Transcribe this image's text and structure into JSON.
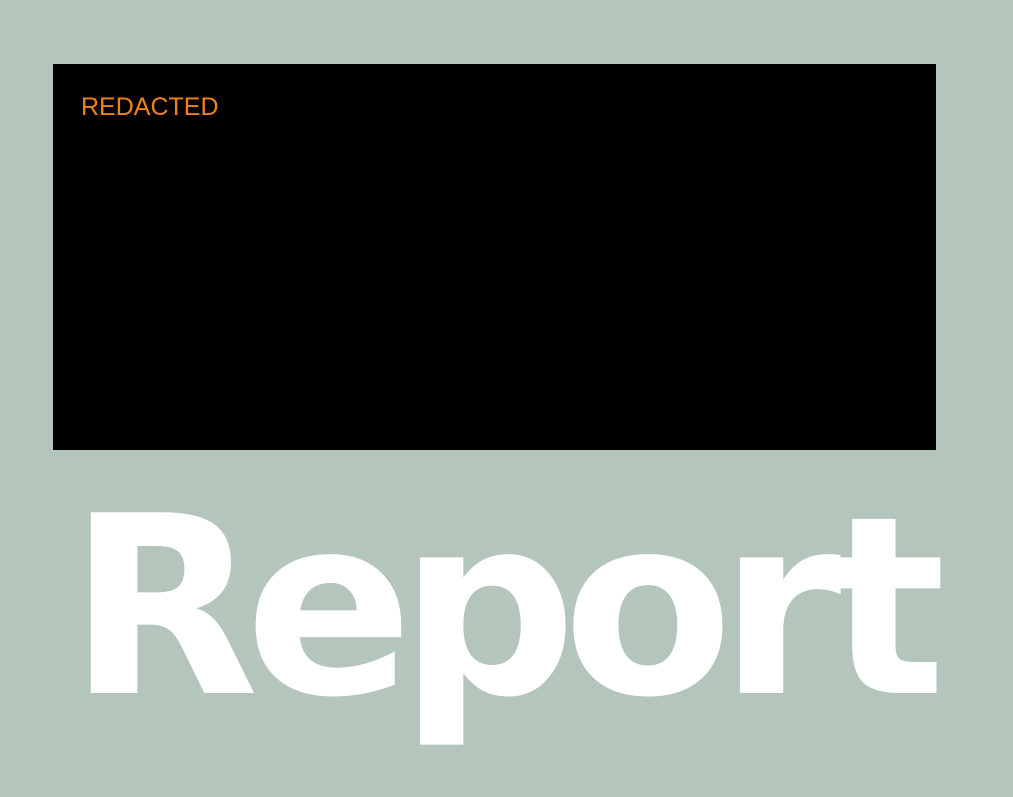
{
  "redaction": {
    "label": "REDACTED",
    "label_color": "#f08218",
    "panel_color": "#000000"
  },
  "document": {
    "title": "Report",
    "title_color": "#ffffff",
    "background_color": "#b4c5bb"
  }
}
